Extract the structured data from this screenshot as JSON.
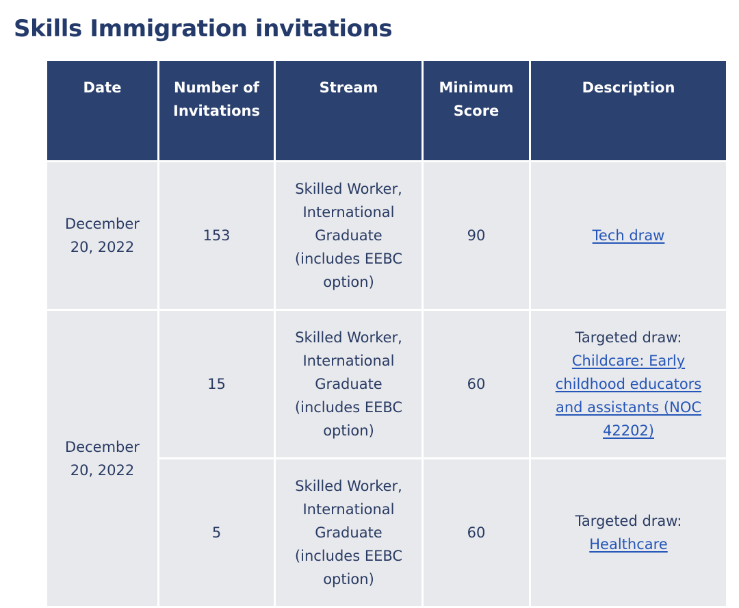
{
  "page": {
    "title": "Skills Immigration invitations"
  },
  "table": {
    "headers": {
      "date": "Date",
      "invitations": "Number of Invitations",
      "stream": "Stream",
      "score": "Minimum Score",
      "description": "Description"
    },
    "rows": [
      {
        "date": "December 20, 2022",
        "invitations": "153",
        "stream": "Skilled Worker, International Graduate (includes EEBC option)",
        "score": "90",
        "description_prefix": "",
        "description_link": "Tech draw"
      },
      {
        "date": "December 20, 2022",
        "invitations": "15",
        "stream": "Skilled Worker, International Graduate (includes EEBC option)",
        "score": "60",
        "description_prefix": "Targeted draw:",
        "description_link": "Childcare: Early childhood educators and assistants (NOC 42202)"
      },
      {
        "invitations": "5",
        "stream": "Skilled Worker, International Graduate (includes EEBC option)",
        "score": "60",
        "description_prefix": "Targeted draw:",
        "description_link": "Healthcare"
      }
    ]
  },
  "colors": {
    "header_bg": "#2b416f",
    "cell_bg": "#e8e9ec",
    "link": "#2455b8",
    "title": "#233a6a"
  }
}
